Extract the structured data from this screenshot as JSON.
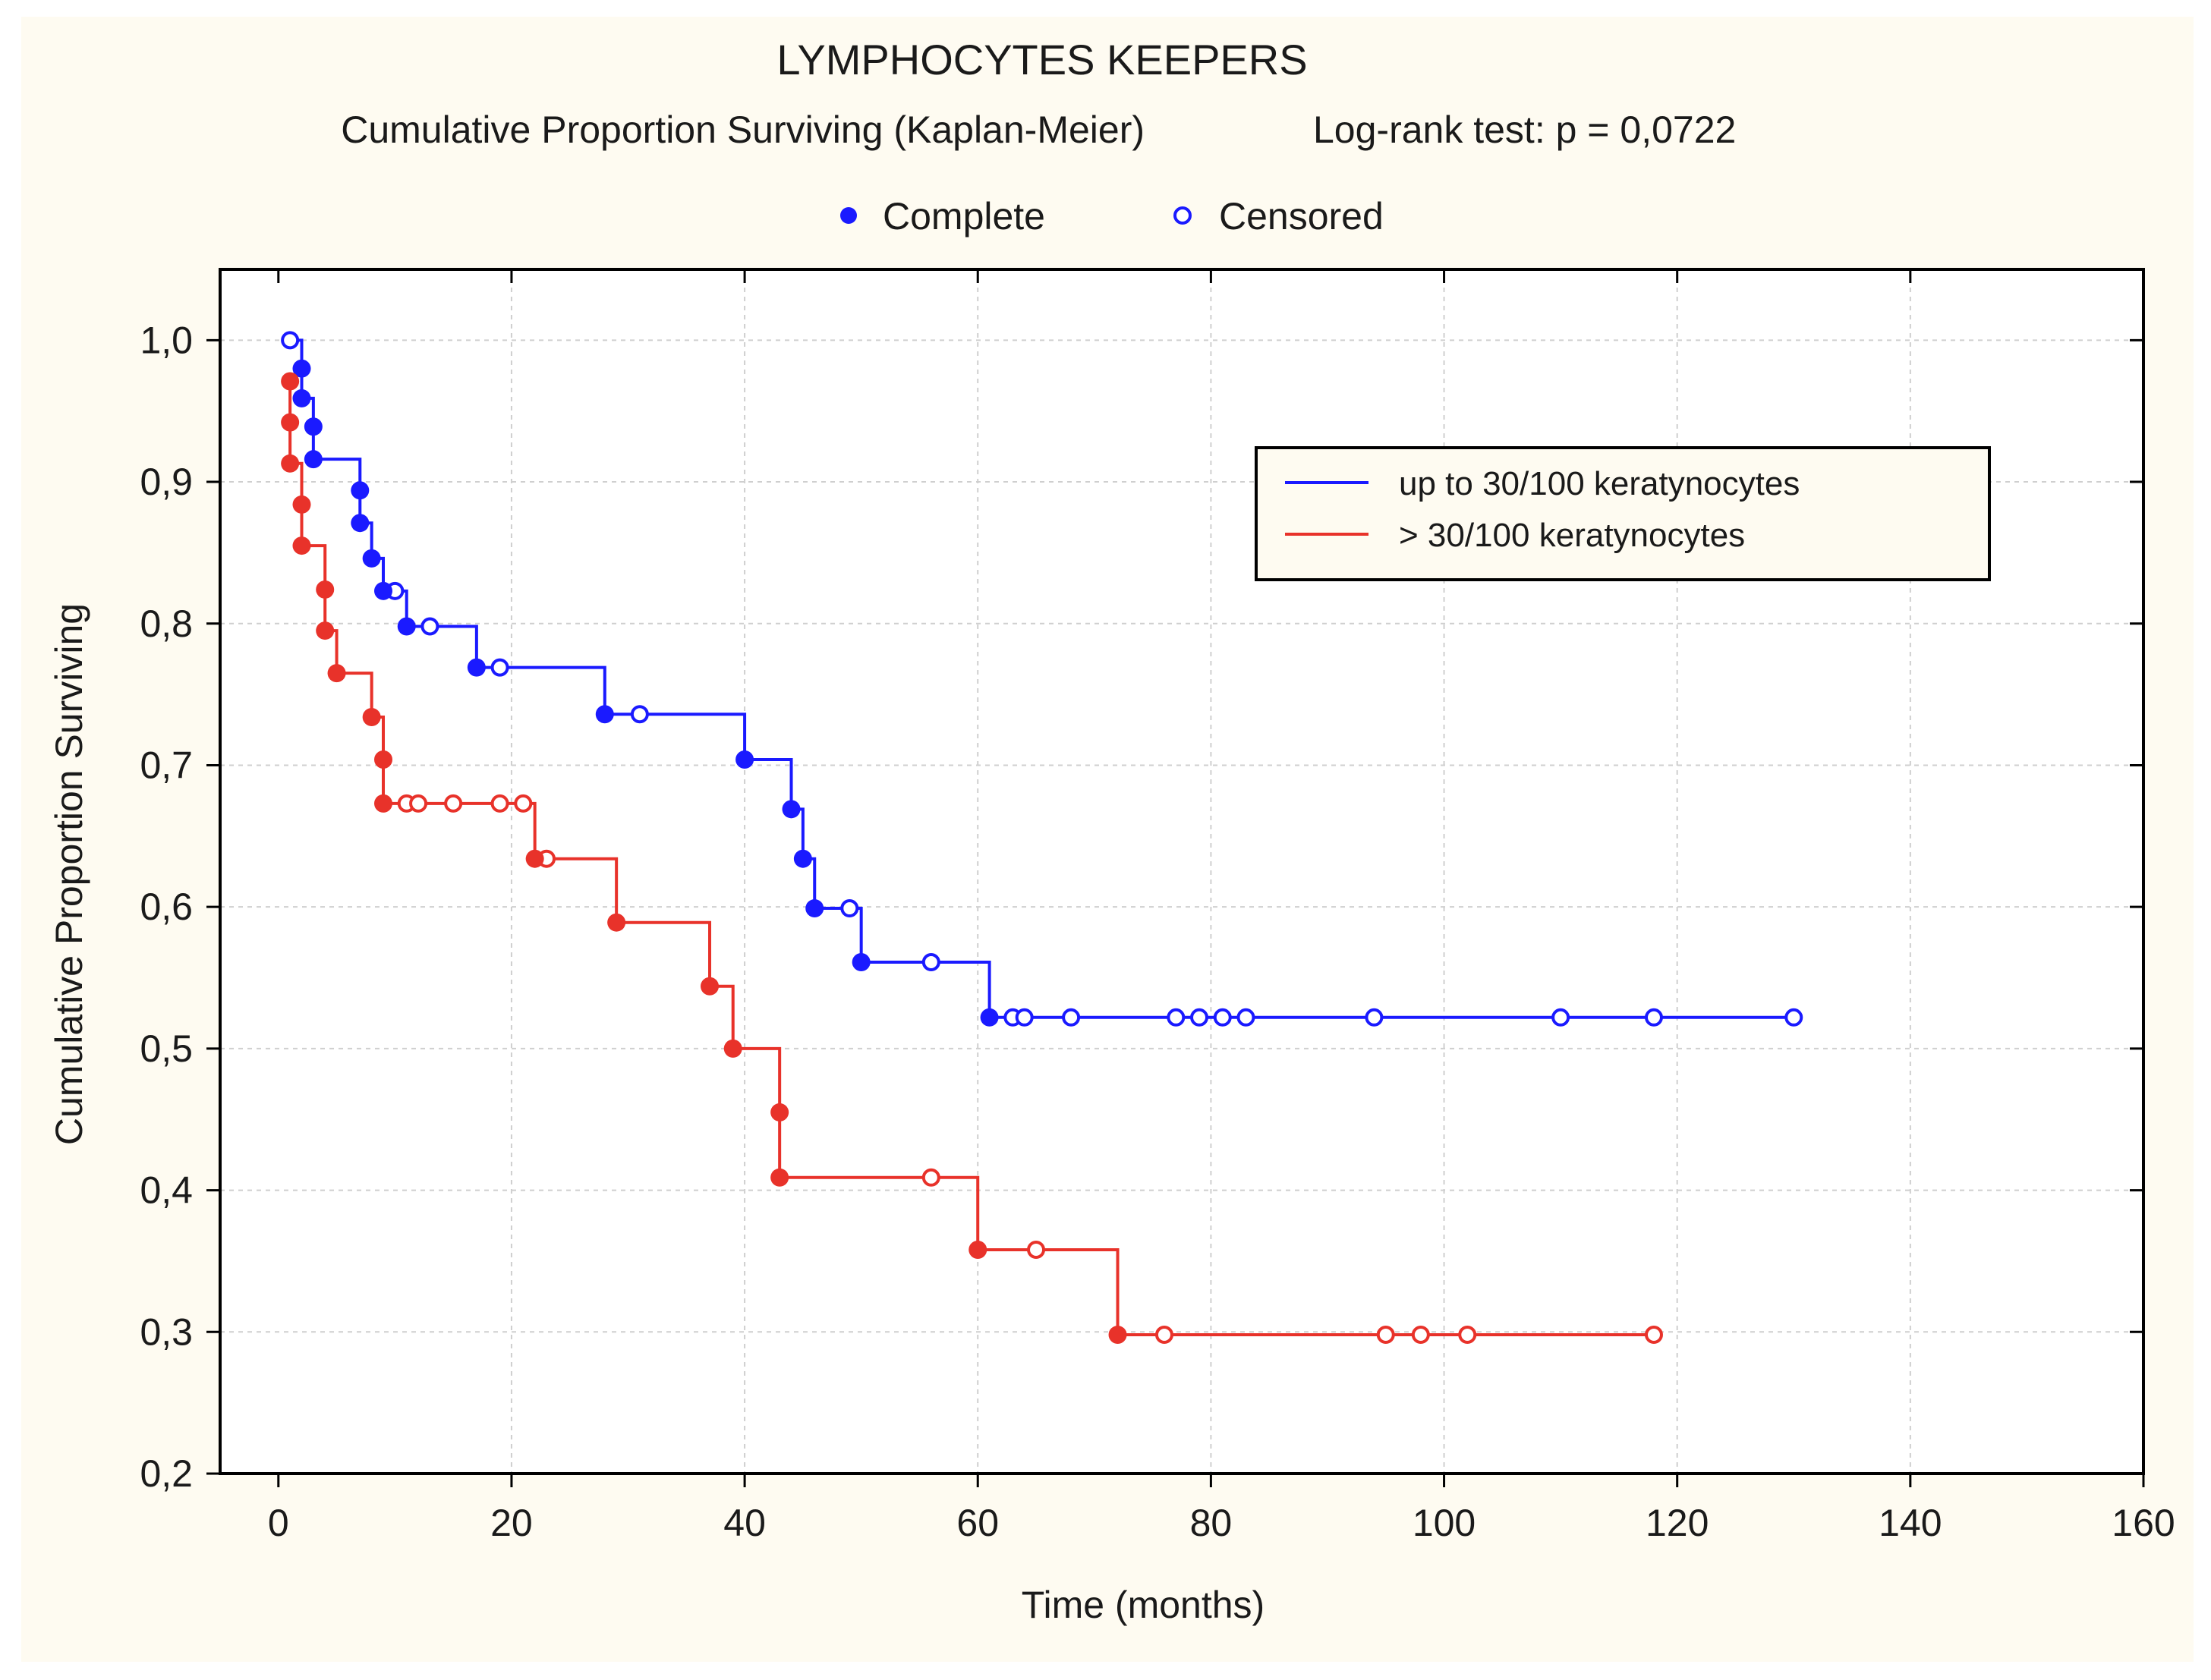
{
  "chart_data": {
    "type": "line",
    "title": "LYMPHOCYTES KEEPERS",
    "subtitle": "Cumulative Proportion Surviving (Kaplan-Meier)",
    "test_text": "Log-rank test: p = 0,0722",
    "marker_legend": {
      "complete": "Complete",
      "censored": "Censored"
    },
    "xlabel": "Time (months)",
    "ylabel": "Cumulative Proportion Surviving",
    "xlim": [
      -5,
      160
    ],
    "ylim": [
      0.2,
      1.05
    ],
    "xticks": [
      0,
      20,
      40,
      60,
      80,
      100,
      120,
      140,
      160
    ],
    "xtick_labels": [
      "0",
      "20",
      "40",
      "60",
      "80",
      "100",
      "120",
      "140",
      "160"
    ],
    "yticks": [
      0.2,
      0.3,
      0.4,
      0.5,
      0.6,
      0.7,
      0.8,
      0.9,
      1.0
    ],
    "ytick_labels": [
      "0,2",
      "0,3",
      "0,4",
      "0,5",
      "0,6",
      "0,7",
      "0,8",
      "0,9",
      "1,0"
    ],
    "grid": true,
    "legend_position": "top-right",
    "series": [
      {
        "name": "up to 30/100 keratynocytes",
        "color": "#1a1aff",
        "start": [
          1,
          1.0
        ],
        "steps": [
          [
            2,
            0.98
          ],
          [
            2,
            0.959
          ],
          [
            3,
            0.939
          ],
          [
            3,
            0.916
          ],
          [
            7,
            0.894
          ],
          [
            7,
            0.871
          ],
          [
            8,
            0.846
          ],
          [
            9,
            0.823
          ],
          [
            11,
            0.798
          ],
          [
            17,
            0.769
          ],
          [
            28,
            0.736
          ],
          [
            40,
            0.704
          ],
          [
            44,
            0.669
          ],
          [
            45,
            0.634
          ],
          [
            46,
            0.599
          ],
          [
            50,
            0.561
          ],
          [
            61,
            0.522
          ]
        ],
        "end_x": 130,
        "complete": [
          [
            2,
            0.98
          ],
          [
            2,
            0.959
          ],
          [
            3,
            0.939
          ],
          [
            3,
            0.916
          ],
          [
            7,
            0.894
          ],
          [
            7,
            0.871
          ],
          [
            8,
            0.846
          ],
          [
            9,
            0.823
          ],
          [
            11,
            0.798
          ],
          [
            17,
            0.769
          ],
          [
            28,
            0.736
          ],
          [
            40,
            0.704
          ],
          [
            44,
            0.669
          ],
          [
            45,
            0.634
          ],
          [
            46,
            0.599
          ],
          [
            50,
            0.561
          ],
          [
            61,
            0.522
          ]
        ],
        "censored": [
          [
            1,
            1.0
          ],
          [
            10,
            0.823
          ],
          [
            13,
            0.798
          ],
          [
            19,
            0.769
          ],
          [
            31,
            0.736
          ],
          [
            49,
            0.599
          ],
          [
            56,
            0.561
          ],
          [
            63,
            0.522
          ],
          [
            64,
            0.522
          ],
          [
            68,
            0.522
          ],
          [
            77,
            0.522
          ],
          [
            79,
            0.522
          ],
          [
            81,
            0.522
          ],
          [
            83,
            0.522
          ],
          [
            94,
            0.522
          ],
          [
            110,
            0.522
          ],
          [
            118,
            0.522
          ],
          [
            130,
            0.522
          ]
        ]
      },
      {
        "name": "> 30/100 keratynocytes",
        "color": "#e8322a",
        "start": [
          1,
          0.971
        ],
        "steps": [
          [
            1,
            0.942
          ],
          [
            1,
            0.913
          ],
          [
            2,
            0.884
          ],
          [
            2,
            0.855
          ],
          [
            4,
            0.824
          ],
          [
            4,
            0.795
          ],
          [
            5,
            0.765
          ],
          [
            8,
            0.734
          ],
          [
            9,
            0.704
          ],
          [
            9,
            0.673
          ],
          [
            22,
            0.634
          ],
          [
            29,
            0.589
          ],
          [
            37,
            0.544
          ],
          [
            39,
            0.5
          ],
          [
            43,
            0.455
          ],
          [
            43,
            0.409
          ],
          [
            60,
            0.358
          ],
          [
            72,
            0.298
          ]
        ],
        "end_x": 118,
        "complete": [
          [
            1,
            0.971
          ],
          [
            1,
            0.942
          ],
          [
            1,
            0.913
          ],
          [
            2,
            0.884
          ],
          [
            2,
            0.855
          ],
          [
            4,
            0.824
          ],
          [
            4,
            0.795
          ],
          [
            5,
            0.765
          ],
          [
            8,
            0.734
          ],
          [
            9,
            0.704
          ],
          [
            9,
            0.673
          ],
          [
            22,
            0.634
          ],
          [
            29,
            0.589
          ],
          [
            37,
            0.544
          ],
          [
            39,
            0.5
          ],
          [
            43,
            0.455
          ],
          [
            43,
            0.409
          ],
          [
            60,
            0.358
          ],
          [
            72,
            0.298
          ]
        ],
        "censored": [
          [
            11,
            0.673
          ],
          [
            12,
            0.673
          ],
          [
            15,
            0.673
          ],
          [
            19,
            0.673
          ],
          [
            21,
            0.673
          ],
          [
            23,
            0.634
          ],
          [
            56,
            0.409
          ],
          [
            65,
            0.358
          ],
          [
            76,
            0.298
          ],
          [
            95,
            0.298
          ],
          [
            98,
            0.298
          ],
          [
            102,
            0.298
          ],
          [
            118,
            0.298
          ]
        ]
      }
    ]
  }
}
